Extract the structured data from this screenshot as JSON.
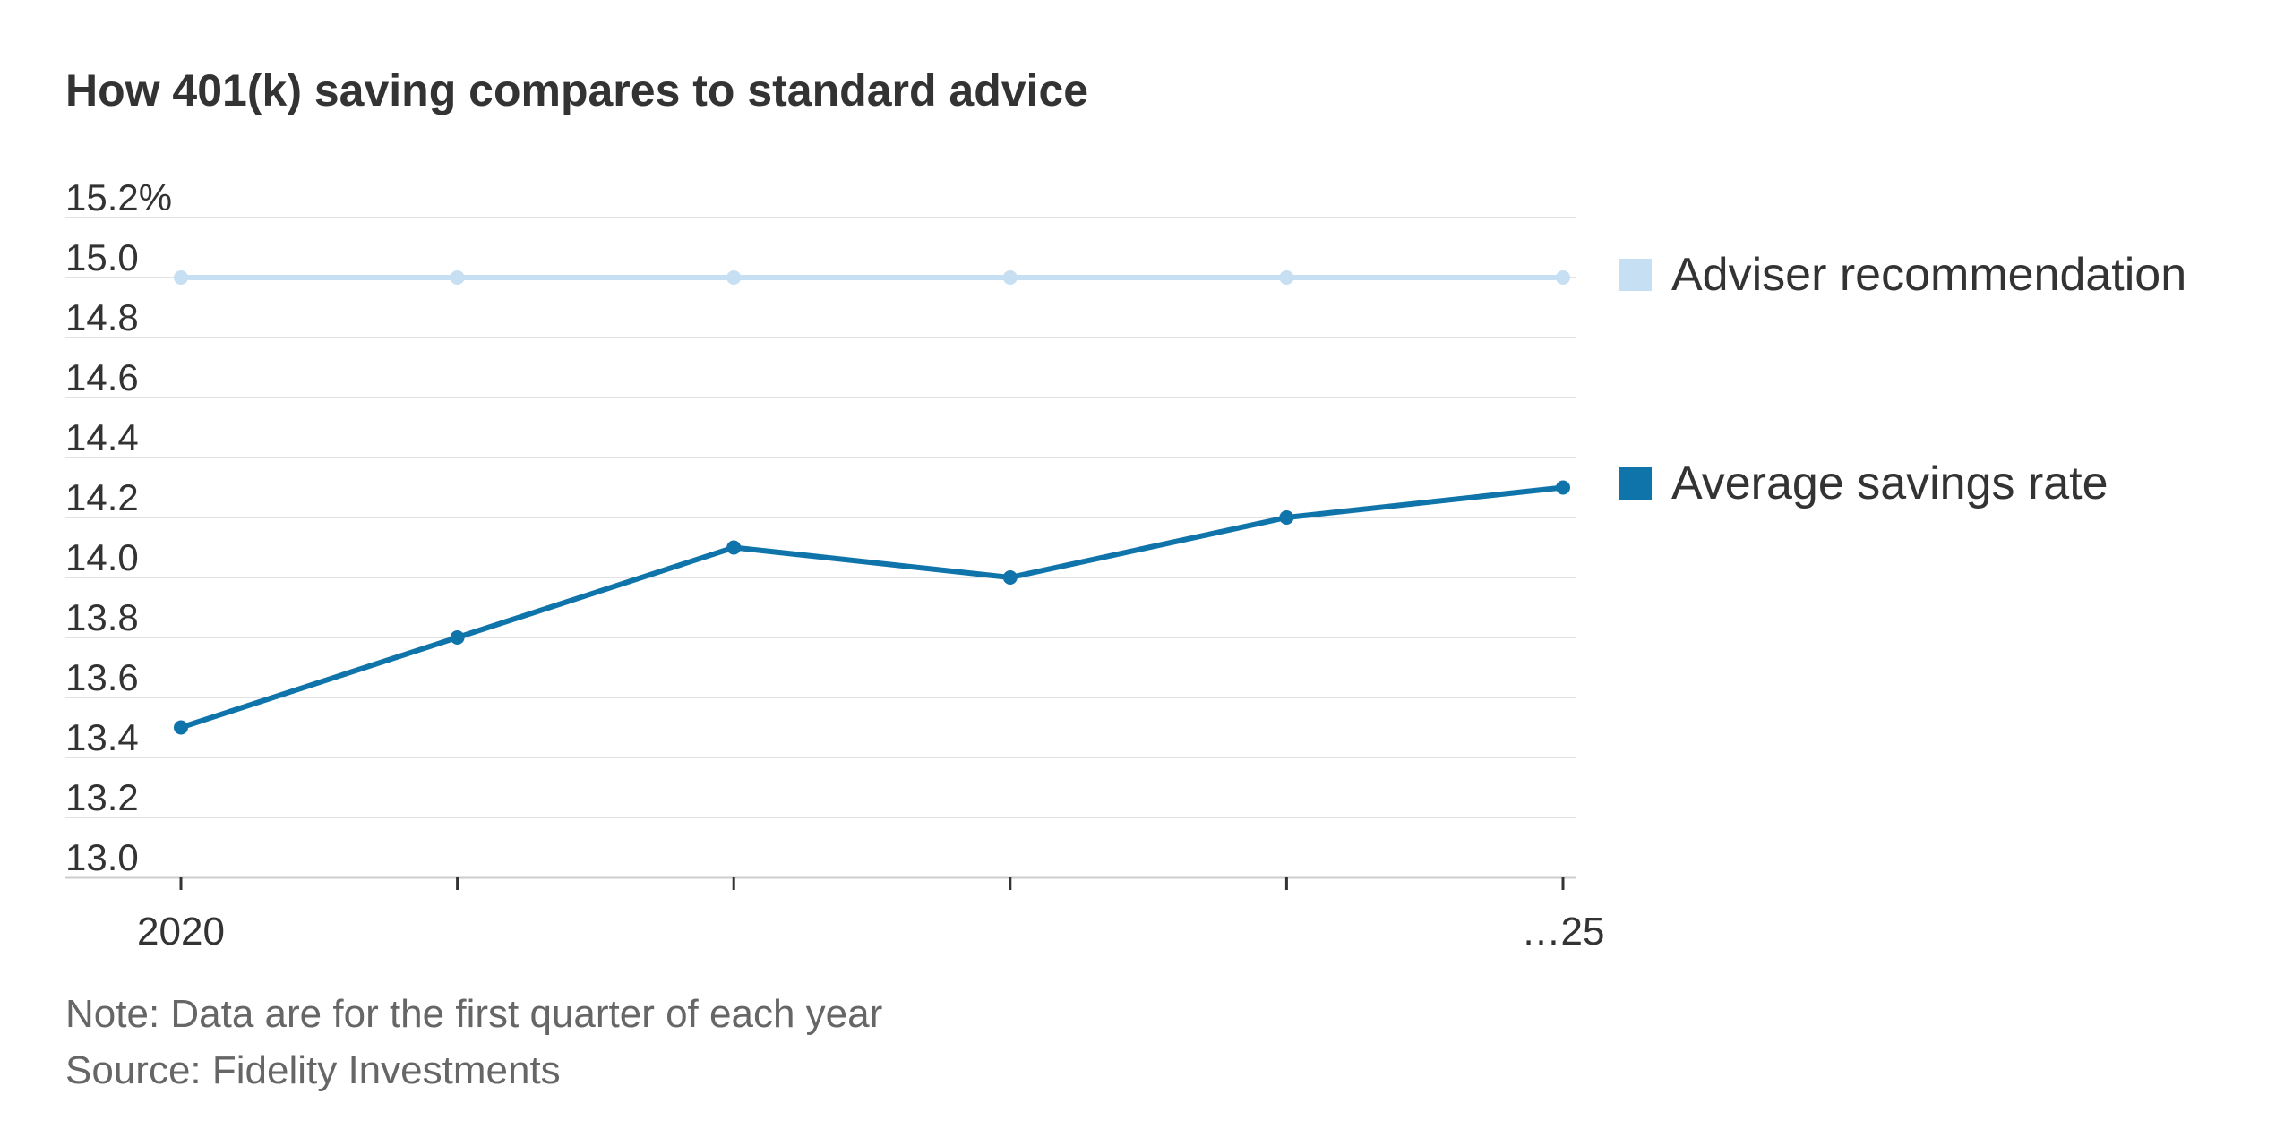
{
  "title": "How 401(k) saving compares to standard advice",
  "chart_data": {
    "type": "line",
    "title": "How 401(k) saving compares to standard advice",
    "x": [
      2020,
      2021,
      2022,
      2023,
      2024,
      2025
    ],
    "x_tick_labels": [
      "2020",
      "",
      "",
      "",
      "",
      "…25"
    ],
    "y_tick_labels": [
      "15.2%",
      "15.0",
      "14.8",
      "14.6",
      "14.4",
      "14.2",
      "14.0",
      "13.8",
      "13.6",
      "13.4",
      "13.2",
      "13.0"
    ],
    "y_ticks": [
      15.2,
      15.0,
      14.8,
      14.6,
      14.4,
      14.2,
      14.0,
      13.8,
      13.6,
      13.4,
      13.2,
      13.0
    ],
    "ylim": [
      13.0,
      15.2
    ],
    "xlabel": "",
    "ylabel": "",
    "grid": "horizontal",
    "legend_placement": "right",
    "series": [
      {
        "name": "Adviser recommendation",
        "color": "#c6dff2",
        "values": [
          15.0,
          15.0,
          15.0,
          15.0,
          15.0,
          15.0
        ]
      },
      {
        "name": "Average savings rate",
        "color": "#0f74aa",
        "values": [
          13.5,
          13.8,
          14.1,
          14.0,
          14.2,
          14.3
        ]
      }
    ]
  },
  "note": "Note: Data are for the first quarter of each year",
  "source": "Source: Fidelity Investments"
}
